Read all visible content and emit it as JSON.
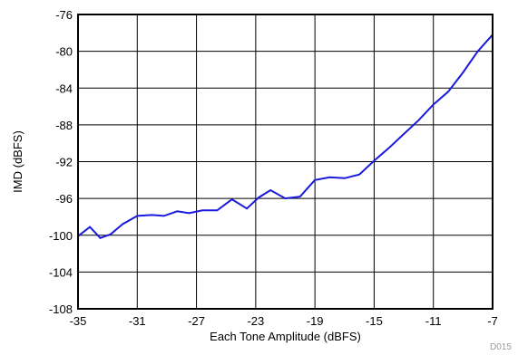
{
  "chart_data": {
    "type": "line",
    "title": "",
    "xlabel": "Each Tone Amplitude (dBFS)",
    "ylabel": "IMD (dBFS)",
    "xlim": [
      -35,
      -7
    ],
    "ylim": [
      -108,
      -76
    ],
    "xticks": [
      -35,
      -31,
      -27,
      -23,
      -19,
      -15,
      -11,
      -7
    ],
    "yticks": [
      -76,
      -80,
      -84,
      -88,
      -92,
      -96,
      -100,
      -104,
      -108
    ],
    "grid": true,
    "legend": "none",
    "line_color": "#1a1adc",
    "series": [
      {
        "x": [
          -35,
          -34.2,
          -33.5,
          -32.8,
          -32,
          -31,
          -30,
          -29.2,
          -28.3,
          -27.5,
          -26.6,
          -25.6,
          -24.6,
          -23.6,
          -22.8,
          -22,
          -21,
          -20,
          -19,
          -18,
          -17,
          -16,
          -15,
          -14,
          -13,
          -12,
          -11,
          -10,
          -9,
          -8,
          -7
        ],
        "y": [
          -100.1,
          -99.1,
          -100.3,
          -99.9,
          -98.8,
          -97.9,
          -97.8,
          -97.9,
          -97.4,
          -97.6,
          -97.3,
          -97.3,
          -96.1,
          -97.1,
          -95.9,
          -95.1,
          -96.0,
          -95.8,
          -94.0,
          -93.7,
          -93.8,
          -93.4,
          -91.9,
          -90.5,
          -89.0,
          -87.5,
          -85.8,
          -84.4,
          -82.3,
          -80.0,
          -78.2
        ]
      }
    ],
    "footnote": "D015"
  }
}
